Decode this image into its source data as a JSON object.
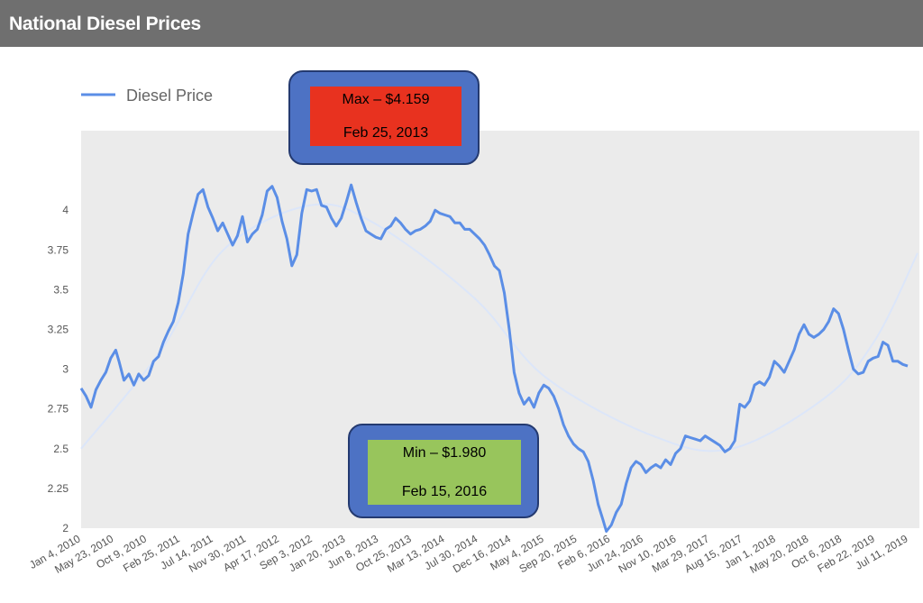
{
  "header": {
    "title": "National Diesel Prices"
  },
  "annotations": {
    "max": {
      "label": "Max – $4.159",
      "date": "Feb 25, 2013",
      "color": "#e8321f"
    },
    "min": {
      "label": "Min – $1.980",
      "date": "Feb 15, 2016",
      "color": "#98c55c"
    }
  },
  "chart_data": {
    "type": "line",
    "title": "",
    "xlabel": "",
    "ylabel": "",
    "legend": "top-left",
    "grid": false,
    "ylim": [
      2,
      4.5
    ],
    "yticks": [
      2,
      2.25,
      2.5,
      2.75,
      3,
      3.25,
      3.5,
      3.75,
      4
    ],
    "xlim": [
      "2010-01-04",
      "2019-09-30"
    ],
    "xtick_labels": [
      "Jan 4, 2010",
      "May 23, 2010",
      "Oct 9, 2010",
      "Feb 25, 2011",
      "Jul 14, 2011",
      "Nov 30, 2011",
      "Apr 17, 2012",
      "Sep 3, 2012",
      "Jan 20, 2013",
      "Jun 8, 2013",
      "Oct 25, 2013",
      "Mar 13, 2014",
      "Jul 30, 2014",
      "Dec 16, 2014",
      "May 4, 2015",
      "Sep 20, 2015",
      "Feb 6, 2016",
      "Jun 24, 2016",
      "Nov 10, 2016",
      "Mar 29, 2017",
      "Aug 15, 2017",
      "Jan 1, 2018",
      "May 20, 2018",
      "Oct 6, 2018",
      "Feb 22, 2019",
      "Jul 11, 2019"
    ],
    "series": [
      {
        "name": "Diesel Price",
        "color": "#5b8ee6",
        "points": [
          [
            "2010-01-04",
            2.88
          ],
          [
            "2010-01-25",
            2.83
          ],
          [
            "2010-02-15",
            2.76
          ],
          [
            "2010-03-08",
            2.87
          ],
          [
            "2010-03-29",
            2.93
          ],
          [
            "2010-04-19",
            2.98
          ],
          [
            "2010-05-10",
            3.07
          ],
          [
            "2010-05-31",
            3.12
          ],
          [
            "2010-06-14",
            3.05
          ],
          [
            "2010-07-05",
            2.93
          ],
          [
            "2010-07-26",
            2.97
          ],
          [
            "2010-08-16",
            2.9
          ],
          [
            "2010-09-06",
            2.97
          ],
          [
            "2010-09-27",
            2.93
          ],
          [
            "2010-10-18",
            2.96
          ],
          [
            "2010-11-08",
            3.05
          ],
          [
            "2010-11-29",
            3.08
          ],
          [
            "2010-12-20",
            3.17
          ],
          [
            "2011-01-10",
            3.24
          ],
          [
            "2011-01-31",
            3.3
          ],
          [
            "2011-02-21",
            3.42
          ],
          [
            "2011-03-14",
            3.6
          ],
          [
            "2011-04-04",
            3.85
          ],
          [
            "2011-04-25",
            3.98
          ],
          [
            "2011-05-16",
            4.1
          ],
          [
            "2011-06-06",
            4.13
          ],
          [
            "2011-06-27",
            4.02
          ],
          [
            "2011-07-18",
            3.95
          ],
          [
            "2011-08-08",
            3.87
          ],
          [
            "2011-08-29",
            3.92
          ],
          [
            "2011-09-19",
            3.85
          ],
          [
            "2011-10-10",
            3.78
          ],
          [
            "2011-10-31",
            3.84
          ],
          [
            "2011-11-21",
            3.96
          ],
          [
            "2011-12-12",
            3.8
          ],
          [
            "2012-01-02",
            3.85
          ],
          [
            "2012-01-23",
            3.88
          ],
          [
            "2012-02-13",
            3.97
          ],
          [
            "2012-03-05",
            4.12
          ],
          [
            "2012-03-26",
            4.15
          ],
          [
            "2012-04-16",
            4.08
          ],
          [
            "2012-05-07",
            3.93
          ],
          [
            "2012-05-28",
            3.82
          ],
          [
            "2012-06-18",
            3.65
          ],
          [
            "2012-07-09",
            3.72
          ],
          [
            "2012-07-30",
            3.98
          ],
          [
            "2012-08-20",
            4.13
          ],
          [
            "2012-09-10",
            4.12
          ],
          [
            "2012-10-01",
            4.13
          ],
          [
            "2012-10-22",
            4.03
          ],
          [
            "2012-11-12",
            4.02
          ],
          [
            "2012-12-03",
            3.95
          ],
          [
            "2012-12-24",
            3.9
          ],
          [
            "2013-01-14",
            3.95
          ],
          [
            "2013-02-04",
            4.05
          ],
          [
            "2013-02-25",
            4.159
          ],
          [
            "2013-03-18",
            4.05
          ],
          [
            "2013-04-08",
            3.95
          ],
          [
            "2013-04-29",
            3.87
          ],
          [
            "2013-05-20",
            3.85
          ],
          [
            "2013-06-10",
            3.83
          ],
          [
            "2013-07-01",
            3.82
          ],
          [
            "2013-07-22",
            3.88
          ],
          [
            "2013-08-12",
            3.9
          ],
          [
            "2013-09-02",
            3.95
          ],
          [
            "2013-09-23",
            3.92
          ],
          [
            "2013-10-14",
            3.88
          ],
          [
            "2013-11-04",
            3.85
          ],
          [
            "2013-11-25",
            3.87
          ],
          [
            "2013-12-16",
            3.88
          ],
          [
            "2014-01-06",
            3.9
          ],
          [
            "2014-01-27",
            3.93
          ],
          [
            "2014-02-17",
            4.0
          ],
          [
            "2014-03-10",
            3.98
          ],
          [
            "2014-03-31",
            3.97
          ],
          [
            "2014-04-21",
            3.96
          ],
          [
            "2014-05-12",
            3.92
          ],
          [
            "2014-06-02",
            3.92
          ],
          [
            "2014-06-23",
            3.88
          ],
          [
            "2014-07-14",
            3.88
          ],
          [
            "2014-08-04",
            3.85
          ],
          [
            "2014-08-25",
            3.82
          ],
          [
            "2014-09-15",
            3.78
          ],
          [
            "2014-10-06",
            3.72
          ],
          [
            "2014-10-27",
            3.65
          ],
          [
            "2014-11-17",
            3.62
          ],
          [
            "2014-12-08",
            3.48
          ],
          [
            "2014-12-29",
            3.25
          ],
          [
            "2015-01-19",
            2.98
          ],
          [
            "2015-02-09",
            2.85
          ],
          [
            "2015-03-02",
            2.78
          ],
          [
            "2015-03-23",
            2.82
          ],
          [
            "2015-04-13",
            2.76
          ],
          [
            "2015-05-04",
            2.85
          ],
          [
            "2015-05-25",
            2.9
          ],
          [
            "2015-06-15",
            2.88
          ],
          [
            "2015-07-06",
            2.83
          ],
          [
            "2015-07-27",
            2.75
          ],
          [
            "2015-08-17",
            2.65
          ],
          [
            "2015-09-07",
            2.58
          ],
          [
            "2015-09-28",
            2.53
          ],
          [
            "2015-10-19",
            2.5
          ],
          [
            "2015-11-09",
            2.48
          ],
          [
            "2015-11-30",
            2.42
          ],
          [
            "2015-12-21",
            2.3
          ],
          [
            "2016-01-11",
            2.15
          ],
          [
            "2016-02-01",
            2.05
          ],
          [
            "2016-02-15",
            1.98
          ],
          [
            "2016-03-07",
            2.02
          ],
          [
            "2016-03-28",
            2.1
          ],
          [
            "2016-04-18",
            2.15
          ],
          [
            "2016-05-09",
            2.28
          ],
          [
            "2016-05-30",
            2.38
          ],
          [
            "2016-06-20",
            2.42
          ],
          [
            "2016-07-11",
            2.4
          ],
          [
            "2016-08-01",
            2.35
          ],
          [
            "2016-08-22",
            2.38
          ],
          [
            "2016-09-12",
            2.4
          ],
          [
            "2016-10-03",
            2.38
          ],
          [
            "2016-10-24",
            2.43
          ],
          [
            "2016-11-14",
            2.4
          ],
          [
            "2016-12-05",
            2.47
          ],
          [
            "2016-12-26",
            2.5
          ],
          [
            "2017-01-16",
            2.58
          ],
          [
            "2017-02-06",
            2.57
          ],
          [
            "2017-02-27",
            2.56
          ],
          [
            "2017-03-20",
            2.55
          ],
          [
            "2017-04-10",
            2.58
          ],
          [
            "2017-05-01",
            2.56
          ],
          [
            "2017-05-22",
            2.54
          ],
          [
            "2017-06-12",
            2.52
          ],
          [
            "2017-07-03",
            2.48
          ],
          [
            "2017-07-24",
            2.5
          ],
          [
            "2017-08-14",
            2.55
          ],
          [
            "2017-09-04",
            2.78
          ],
          [
            "2017-09-25",
            2.76
          ],
          [
            "2017-10-16",
            2.8
          ],
          [
            "2017-11-06",
            2.9
          ],
          [
            "2017-11-27",
            2.92
          ],
          [
            "2017-12-18",
            2.9
          ],
          [
            "2018-01-08",
            2.95
          ],
          [
            "2018-01-29",
            3.05
          ],
          [
            "2018-02-19",
            3.02
          ],
          [
            "2018-03-12",
            2.98
          ],
          [
            "2018-04-02",
            3.05
          ],
          [
            "2018-04-23",
            3.12
          ],
          [
            "2018-05-14",
            3.22
          ],
          [
            "2018-06-04",
            3.28
          ],
          [
            "2018-06-25",
            3.22
          ],
          [
            "2018-07-16",
            3.2
          ],
          [
            "2018-08-06",
            3.22
          ],
          [
            "2018-08-27",
            3.25
          ],
          [
            "2018-09-17",
            3.3
          ],
          [
            "2018-10-08",
            3.38
          ],
          [
            "2018-10-29",
            3.35
          ],
          [
            "2018-11-19",
            3.25
          ],
          [
            "2018-12-10",
            3.12
          ],
          [
            "2018-12-31",
            3.0
          ],
          [
            "2019-01-21",
            2.97
          ],
          [
            "2019-02-11",
            2.98
          ],
          [
            "2019-03-04",
            3.05
          ],
          [
            "2019-03-25",
            3.07
          ],
          [
            "2019-04-15",
            3.08
          ],
          [
            "2019-05-06",
            3.17
          ],
          [
            "2019-05-27",
            3.15
          ],
          [
            "2019-06-17",
            3.05
          ],
          [
            "2019-07-08",
            3.05
          ],
          [
            "2019-07-29",
            3.03
          ],
          [
            "2019-08-19",
            3.02
          ]
        ]
      },
      {
        "trend": "smooth",
        "color": "#dce6f9",
        "points": [
          [
            "2010-01-04",
            2.5
          ],
          [
            "2010-12-01",
            3.1
          ],
          [
            "2011-09-01",
            3.75
          ],
          [
            "2012-09-01",
            4.03
          ],
          [
            "2013-06-01",
            3.92
          ],
          [
            "2014-08-01",
            3.45
          ],
          [
            "2015-06-01",
            2.95
          ],
          [
            "2016-09-01",
            2.58
          ],
          [
            "2017-08-01",
            2.5
          ],
          [
            "2018-09-01",
            2.82
          ],
          [
            "2019-04-01",
            3.18
          ],
          [
            "2019-09-30",
            3.73
          ]
        ]
      }
    ]
  }
}
